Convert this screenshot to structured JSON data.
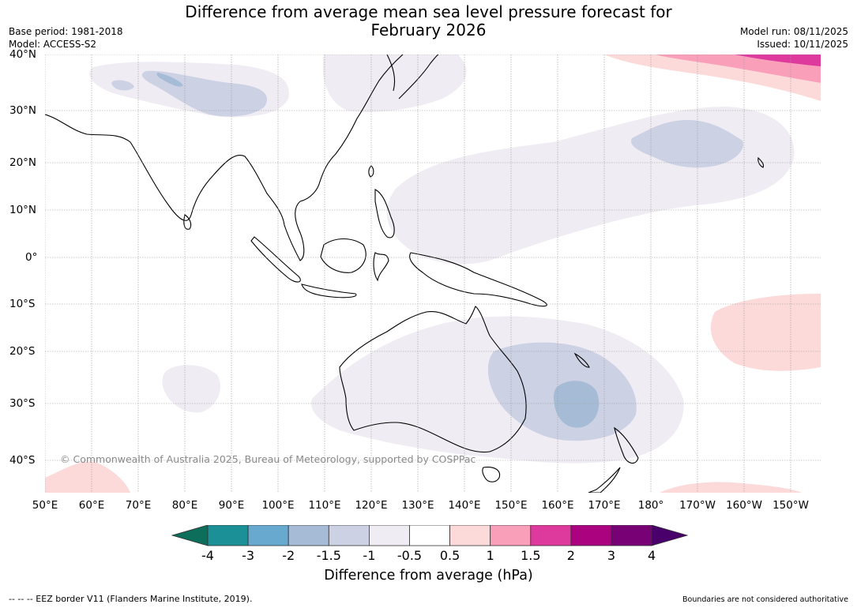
{
  "title": {
    "line1": "Difference from average mean sea level pressure forecast for",
    "line2": "February 2026"
  },
  "meta": {
    "base_period": "Base period: 1981-2018",
    "model": "Model: ACCESS-S2",
    "model_run": "Model run: 08/11/2025",
    "issued": "Issued: 10/11/2025"
  },
  "map": {
    "lat_labels": [
      "40°N",
      "30°N",
      "20°N",
      "10°N",
      "0°",
      "10°S",
      "20°S",
      "30°S",
      "40°S"
    ],
    "lon_labels": [
      "50°E",
      "60°E",
      "70°E",
      "80°E",
      "90°E",
      "100°E",
      "110°E",
      "120°E",
      "130°E",
      "140°E",
      "150°E",
      "160°E",
      "170°E",
      "180°",
      "170°W",
      "160°W",
      "150°W"
    ],
    "copyright": "© Commonwealth of Australia 2025, Bureau of Meteorology, supported by COSPPac"
  },
  "colorbar": {
    "ticks": [
      "-4",
      "-3",
      "-2",
      "-1.5",
      "-1",
      "-0.5",
      "0.5",
      "1",
      "1.5",
      "2",
      "3",
      "4"
    ],
    "colors": [
      "#0e6e5c",
      "#1b9096",
      "#67a9cf",
      "#a6bcd6",
      "#cdd1e4",
      "#f0ecf3",
      "#ffffff",
      "#fddada",
      "#f99fba",
      "#de3a9e",
      "#ab0280",
      "#790176",
      "#49006a"
    ],
    "title": "Difference from average (hPa)"
  },
  "footer": {
    "eez": "--  --  -- EEZ border V11 (Flanders Marine Institute, 2019).",
    "disclaimer": "Boundaries are not considered authoritative"
  }
}
